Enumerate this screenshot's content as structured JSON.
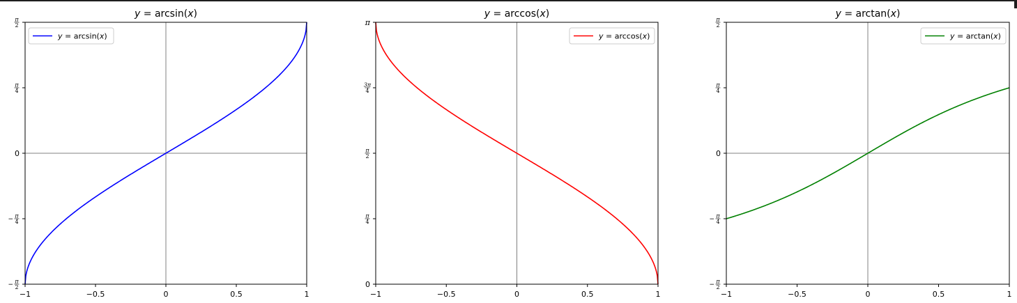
{
  "chart_data": [
    {
      "type": "line",
      "title": "y = arcsin(x)",
      "title_parts": {
        "lhs": "y",
        "eq": " = arcsin(",
        "arg": "x",
        "close": ")"
      },
      "function": "arcsin",
      "color": "#0000ff",
      "xlim": [
        -1,
        1
      ],
      "ylim": [
        -1.5708,
        1.5708
      ],
      "xticks": [
        {
          "value": -1,
          "label": "−1"
        },
        {
          "value": -0.5,
          "label": "−0.5"
        },
        {
          "value": 0,
          "label": "0"
        },
        {
          "value": 0.5,
          "label": "0.5"
        },
        {
          "value": 1,
          "label": "1"
        }
      ],
      "yticks": [
        {
          "value": -1.5708,
          "label": "−π/2"
        },
        {
          "value": -0.7854,
          "label": "−π/4"
        },
        {
          "value": 0,
          "label": "0"
        },
        {
          "value": 0.7854,
          "label": "π/4"
        },
        {
          "value": 1.5708,
          "label": "π/2"
        }
      ],
      "reference_lines": {
        "x": 0,
        "y": 0
      },
      "legend": {
        "label": "y = arcsin(x)",
        "placement": "upper-left"
      },
      "series": [
        {
          "name": "y = arcsin(x)",
          "points": [
            [
              -1,
              -1.5708
            ],
            [
              -0.9,
              -1.1198
            ],
            [
              -0.75,
              -0.8481
            ],
            [
              -0.5,
              -0.5236
            ],
            [
              -0.25,
              -0.2527
            ],
            [
              0,
              0
            ],
            [
              0.25,
              0.2527
            ],
            [
              0.5,
              0.5236
            ],
            [
              0.75,
              0.8481
            ],
            [
              0.9,
              1.1198
            ],
            [
              1,
              1.5708
            ]
          ]
        }
      ]
    },
    {
      "type": "line",
      "title": "y = arccos(x)",
      "title_parts": {
        "lhs": "y",
        "eq": " = arccos(",
        "arg": "x",
        "close": ")"
      },
      "function": "arccos",
      "color": "#ff0000",
      "xlim": [
        -1,
        1
      ],
      "ylim": [
        0,
        3.1416
      ],
      "xticks": [
        {
          "value": -1,
          "label": "−1"
        },
        {
          "value": -0.5,
          "label": "−0.5"
        },
        {
          "value": 0,
          "label": "0"
        },
        {
          "value": 0.5,
          "label": "0.5"
        },
        {
          "value": 1,
          "label": "1"
        }
      ],
      "yticks": [
        {
          "value": 0,
          "label": "0"
        },
        {
          "value": 0.7854,
          "label": "π/4"
        },
        {
          "value": 1.5708,
          "label": "π/2"
        },
        {
          "value": 2.3562,
          "label": "3π/4"
        },
        {
          "value": 3.1416,
          "label": "π"
        }
      ],
      "reference_lines": {
        "x": 0,
        "y": null
      },
      "legend": {
        "label": "y = arccos(x)",
        "placement": "upper-right"
      },
      "series": [
        {
          "name": "y = arccos(x)",
          "points": [
            [
              -1,
              3.1416
            ],
            [
              -0.9,
              2.6906
            ],
            [
              -0.75,
              2.4189
            ],
            [
              -0.5,
              2.0944
            ],
            [
              -0.25,
              1.8235
            ],
            [
              0,
              1.5708
            ],
            [
              0.25,
              1.3181
            ],
            [
              0.5,
              1.0472
            ],
            [
              0.75,
              0.7227
            ],
            [
              0.9,
              0.451
            ],
            [
              1,
              0
            ]
          ]
        }
      ]
    },
    {
      "type": "line",
      "title": "y = arctan(x)",
      "title_parts": {
        "lhs": "y",
        "eq": " = arctan(",
        "arg": "x",
        "close": ")"
      },
      "function": "arctan",
      "color": "#008000",
      "xlim": [
        -1,
        1
      ],
      "ylim": [
        -1.5708,
        1.5708
      ],
      "xticks": [
        {
          "value": -1,
          "label": "−1"
        },
        {
          "value": -0.5,
          "label": "−0.5"
        },
        {
          "value": 0,
          "label": "0"
        },
        {
          "value": 0.5,
          "label": "0.5"
        },
        {
          "value": 1,
          "label": "1"
        }
      ],
      "yticks": [
        {
          "value": -1.5708,
          "label": "−π/2"
        },
        {
          "value": -0.7854,
          "label": "−π/4"
        },
        {
          "value": 0,
          "label": "0"
        },
        {
          "value": 0.7854,
          "label": "π/4"
        },
        {
          "value": 1.5708,
          "label": "π/2"
        }
      ],
      "reference_lines": {
        "x": 0,
        "y": 0
      },
      "legend": {
        "label": "y = arctan(x)",
        "placement": "upper-right"
      },
      "series": [
        {
          "name": "y = arctan(x)",
          "points": [
            [
              -1,
              -0.7854
            ],
            [
              -0.75,
              -0.6435
            ],
            [
              -0.5,
              -0.4636
            ],
            [
              -0.25,
              -0.245
            ],
            [
              0,
              0
            ],
            [
              0.25,
              0.245
            ],
            [
              0.5,
              0.4636
            ],
            [
              0.75,
              0.6435
            ],
            [
              1,
              0.7854
            ]
          ]
        }
      ]
    }
  ]
}
